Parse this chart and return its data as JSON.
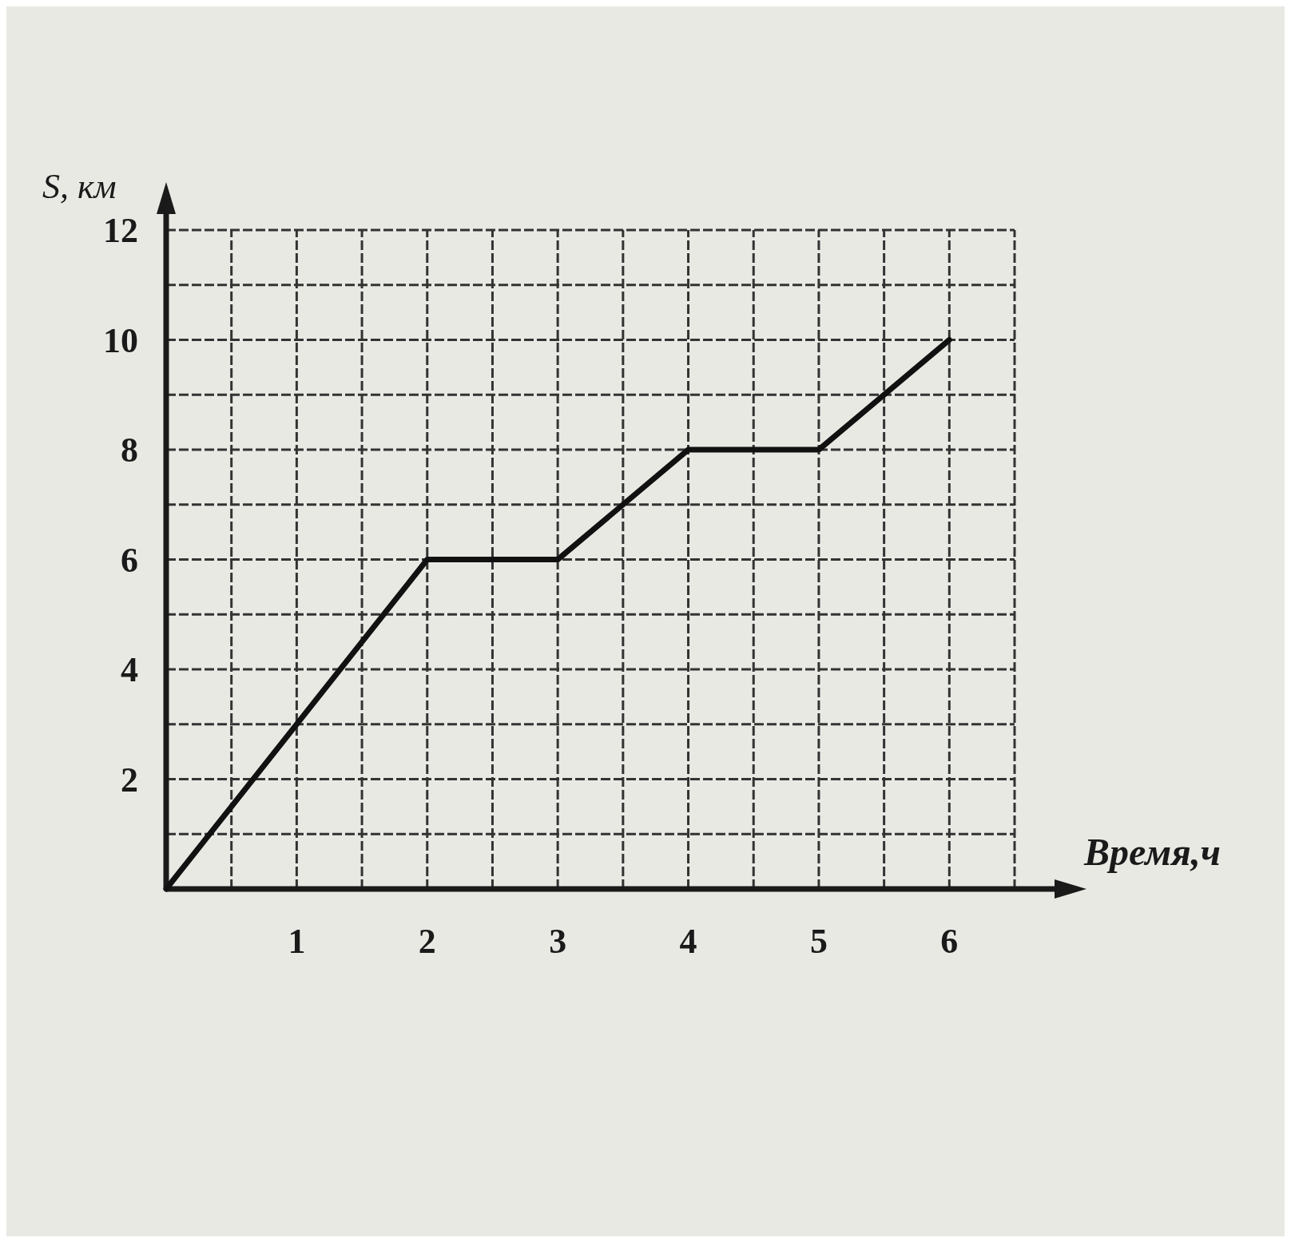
{
  "chart_data": {
    "type": "line",
    "xlabel": "Время,ч",
    "ylabel": "S, км",
    "x": [
      0,
      2,
      3,
      4,
      5,
      6
    ],
    "series": [
      {
        "color": "#111111",
        "values": [
          0,
          6,
          6,
          8,
          8,
          10
        ]
      }
    ],
    "xlim": [
      0,
      6.5
    ],
    "ylim": [
      0,
      12
    ],
    "xticks": [
      {
        "value": 0.5,
        "label": null
      },
      1,
      {
        "value": 1.5,
        "label": null
      },
      2,
      {
        "value": 2.5,
        "label": null
      },
      3,
      {
        "value": 3.5,
        "label": null
      },
      4,
      {
        "value": 4.5,
        "label": null
      },
      5,
      {
        "value": 5.5,
        "label": null
      },
      6,
      {
        "value": 6.5,
        "label": null
      }
    ],
    "yticks": [
      {
        "value": 1,
        "label": null
      },
      2,
      {
        "value": 3,
        "label": null
      },
      4,
      {
        "value": 5,
        "label": null
      },
      6,
      {
        "value": 7,
        "label": null
      },
      8,
      {
        "value": 9,
        "label": null
      },
      10,
      {
        "value": 11,
        "label": null
      },
      12
    ],
    "grid": true,
    "marker": "none",
    "line_style": "solid"
  }
}
